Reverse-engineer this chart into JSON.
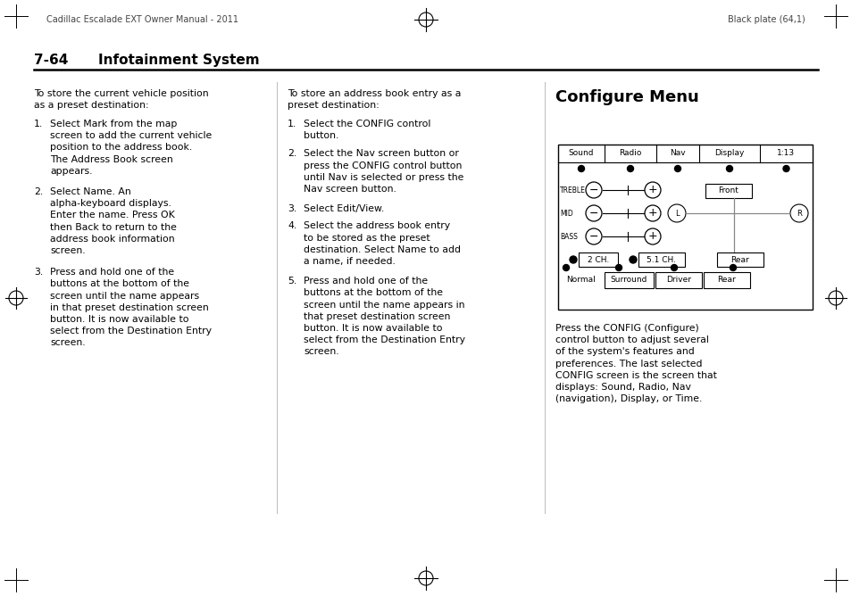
{
  "page_title_left": "Cadillac Escalade EXT Owner Manual - 2011",
  "page_title_right": "Black plate (64,1)",
  "section_number": "7-64",
  "section_title": "Infotainment System",
  "col3_title": "Configure Menu",
  "col3_body": "Press the CONFIG (Configure)\ncontrol button to adjust several\nof the system's features and\npreferences. The last selected\nCONFIG screen is the screen that\ndisplays: Sound, Radio, Nav\n(navigation), Display, or Time.",
  "bg_color": "#ffffff",
  "text_color": "#000000"
}
